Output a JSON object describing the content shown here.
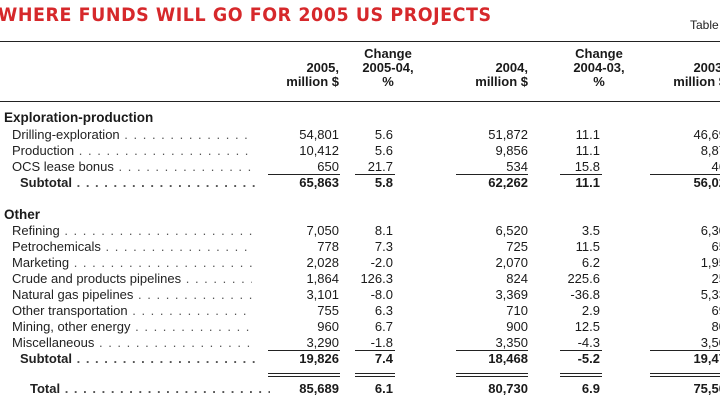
{
  "title": "WHERE FUNDS WILL GO FOR 2005 US PROJECTS",
  "table_label": "Table",
  "headers": [
    {
      "line1": "",
      "line2": "2005,",
      "line3": "million $"
    },
    {
      "line1": "Change",
      "line2": "2005-04,",
      "line3": "%"
    },
    {
      "line1": "",
      "line2": "2004,",
      "line3": "million $"
    },
    {
      "line1": "Change",
      "line2": "2004-03,",
      "line3": "%"
    },
    {
      "line1": "",
      "line2": "2003,",
      "line3": "million $"
    }
  ],
  "sections": {
    "exploration": "Exploration-production",
    "other": "Other"
  },
  "rows": [
    {
      "label": "Drilling-exploration",
      "kind": "item",
      "v": [
        "54,801",
        "5.6",
        "51,872",
        "11.1",
        "46,69"
      ]
    },
    {
      "label": "Production",
      "kind": "item",
      "v": [
        "10,412",
        "5.6",
        "9,856",
        "11.1",
        "8,87"
      ]
    },
    {
      "label": "OCS lease bonus",
      "kind": "item",
      "v": [
        "650",
        "21.7",
        "534",
        "15.8",
        "46"
      ]
    },
    {
      "label": "Subtotal",
      "kind": "sub",
      "v": [
        "65,863",
        "5.8",
        "62,262",
        "11.1",
        "56,02"
      ]
    },
    {
      "label": "Refining",
      "kind": "item",
      "v": [
        "7,050",
        "8.1",
        "6,520",
        "3.5",
        "6,30"
      ]
    },
    {
      "label": "Petrochemicals",
      "kind": "item",
      "v": [
        "778",
        "7.3",
        "725",
        "11.5",
        "65"
      ]
    },
    {
      "label": "Marketing",
      "kind": "item",
      "v": [
        "2,028",
        "-2.0",
        "2,070",
        "6.2",
        "1,95"
      ]
    },
    {
      "label": "Crude and products pipelines",
      "kind": "item",
      "v": [
        "1,864",
        "126.3",
        "824",
        "225.6",
        "25"
      ]
    },
    {
      "label": "Natural gas pipelines",
      "kind": "item",
      "v": [
        "3,101",
        "-8.0",
        "3,369",
        "-36.8",
        "5,33"
      ]
    },
    {
      "label": "Other transportation",
      "kind": "item",
      "v": [
        "755",
        "6.3",
        "710",
        "2.9",
        "69"
      ]
    },
    {
      "label": "Mining, other energy",
      "kind": "item",
      "v": [
        "960",
        "6.7",
        "900",
        "12.5",
        "80"
      ]
    },
    {
      "label": "Miscellaneous",
      "kind": "item",
      "v": [
        "3,290",
        "-1.8",
        "3,350",
        "-4.3",
        "3,50"
      ]
    },
    {
      "label": "Subtotal",
      "kind": "sub",
      "v": [
        "19,826",
        "7.4",
        "18,468",
        "-5.2",
        "19,47"
      ]
    },
    {
      "label": "Total",
      "kind": "total",
      "v": [
        "85,689",
        "6.1",
        "80,730",
        "6.9",
        "75,50"
      ]
    }
  ]
}
